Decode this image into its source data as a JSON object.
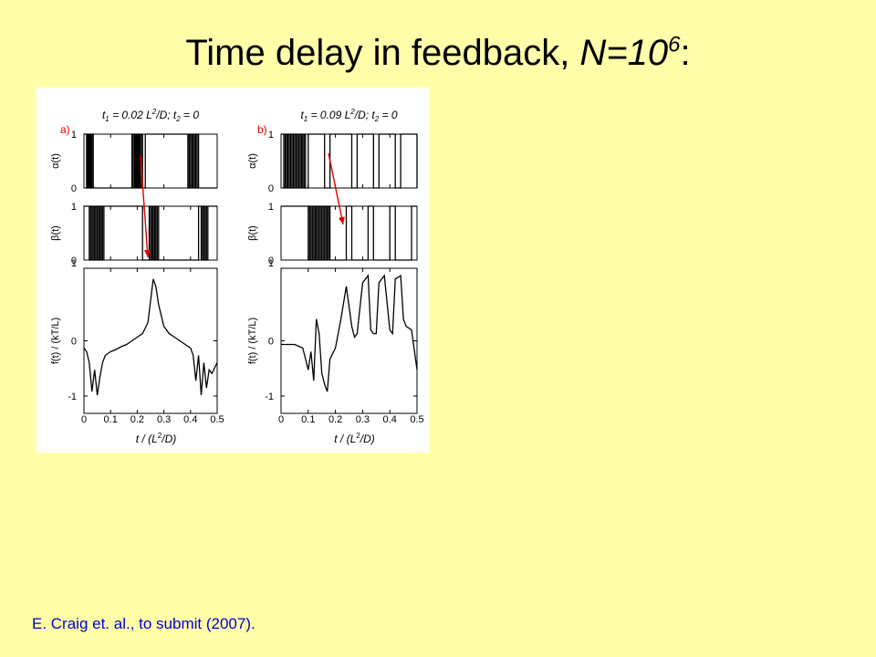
{
  "slide": {
    "title_main": "Time delay in feedback, ",
    "title_n": "N",
    "title_eq": "=10",
    "title_exp": "6",
    "title_tail": ":"
  },
  "figure": {
    "panels": [
      {
        "tag": "a)",
        "cap_t1": "t",
        "cap_s1": "1",
        "cap_mid": " = 0.02 L",
        "cap_s2": "2",
        "cap_mid2": "/D; t",
        "cap_s3": "2",
        "cap_end": " = 0"
      },
      {
        "tag": "b)",
        "cap_t1": "t",
        "cap_s1": "1",
        "cap_mid": " = 0.09 L",
        "cap_s2": "2",
        "cap_mid2": "/D; t",
        "cap_s3": "2",
        "cap_end": " = 0"
      }
    ],
    "ylabel_alpha": "α(t)",
    "ylabel_beta": "β(t)",
    "ylabel_f": "f(t) / (kT/L)",
    "xlabel_pre": "t / (L",
    "xlabel_sup": "2",
    "xlabel_post": "/D)",
    "tick_1": "1",
    "tick_0": "0",
    "tick_m1": "-1"
  },
  "citation": "E. Craig et. al., to submit (2007).",
  "colors": {
    "background": "#FFFFAA",
    "arrow": "#E00000",
    "tag": "#E00000",
    "citation": "#0000CC"
  },
  "chart_data": [
    {
      "type": "line",
      "panel": "a",
      "xlim": [
        0,
        0.5
      ],
      "xticks": [
        0,
        0.1,
        0.2,
        0.3,
        0.4,
        0.5
      ],
      "alpha": {
        "ylim": [
          0,
          1
        ],
        "x": [
          0,
          0.01,
          0.012,
          0.015,
          0.017,
          0.02,
          0.023,
          0.026,
          0.03,
          0.035,
          0.18,
          0.185,
          0.19,
          0.194,
          0.198,
          0.202,
          0.206,
          0.21,
          0.215,
          0.22,
          0.23,
          0.39,
          0.395,
          0.4,
          0.405,
          0.41,
          0.415,
          0.42,
          0.425,
          0.43,
          0.5
        ],
        "y": [
          1,
          0,
          1,
          0,
          1,
          0,
          1,
          0,
          1,
          0,
          1,
          0,
          1,
          0,
          1,
          0,
          1,
          0,
          1,
          0,
          1,
          0,
          1,
          0,
          1,
          0,
          1,
          0,
          1,
          0,
          0
        ]
      },
      "beta": {
        "ylim": [
          0,
          1
        ],
        "x": [
          0,
          0.02,
          0.025,
          0.03,
          0.035,
          0.04,
          0.045,
          0.05,
          0.055,
          0.06,
          0.065,
          0.07,
          0.075,
          0.22,
          0.245,
          0.25,
          0.255,
          0.26,
          0.265,
          0.27,
          0.275,
          0.28,
          0.43,
          0.44,
          0.445,
          0.45,
          0.455,
          0.46,
          0.465,
          0.5
        ],
        "y": [
          1,
          0,
          1,
          0,
          1,
          0,
          1,
          0,
          1,
          0,
          1,
          0,
          1,
          0,
          1,
          0,
          1,
          0,
          1,
          0,
          1,
          0,
          1,
          0,
          1,
          0,
          1,
          0,
          1,
          1
        ]
      },
      "f": {
        "ylim": [
          -1,
          1
        ],
        "x": [
          0,
          0.01,
          0.02,
          0.03,
          0.04,
          0.05,
          0.06,
          0.07,
          0.08,
          0.1,
          0.12,
          0.14,
          0.16,
          0.18,
          0.2,
          0.22,
          0.24,
          0.26,
          0.27,
          0.28,
          0.29,
          0.3,
          0.32,
          0.34,
          0.36,
          0.38,
          0.4,
          0.41,
          0.42,
          0.43,
          0.44,
          0.45,
          0.46,
          0.47,
          0.48,
          0.5
        ],
        "y": [
          -0.1,
          -0.15,
          -0.3,
          -0.7,
          -0.4,
          -0.75,
          -0.5,
          -0.3,
          -0.2,
          -0.15,
          -0.12,
          -0.08,
          -0.05,
          0,
          0.05,
          0.1,
          0.25,
          0.85,
          0.75,
          0.5,
          0.35,
          0.2,
          0.1,
          0.05,
          0,
          -0.05,
          -0.1,
          -0.2,
          -0.55,
          -0.2,
          -0.75,
          -0.3,
          -0.65,
          -0.4,
          -0.45,
          -0.3
        ]
      }
    },
    {
      "type": "line",
      "panel": "b",
      "xlim": [
        0,
        0.5
      ],
      "xticks": [
        0,
        0.1,
        0.2,
        0.3,
        0.4,
        0.5
      ],
      "alpha": {
        "ylim": [
          0,
          1
        ],
        "x": [
          0,
          0.01,
          0.015,
          0.02,
          0.025,
          0.03,
          0.035,
          0.04,
          0.045,
          0.05,
          0.055,
          0.06,
          0.065,
          0.07,
          0.075,
          0.08,
          0.085,
          0.09,
          0.1,
          0.16,
          0.18,
          0.26,
          0.28,
          0.34,
          0.36,
          0.42,
          0.44,
          0.5
        ],
        "y": [
          1,
          0,
          1,
          0,
          1,
          0,
          1,
          0,
          1,
          0,
          1,
          0,
          1,
          0,
          1,
          0,
          1,
          0,
          1,
          0,
          1,
          0,
          1,
          0,
          1,
          0,
          1,
          0
        ]
      },
      "beta": {
        "ylim": [
          0,
          1
        ],
        "x": [
          0,
          0.05,
          0.1,
          0.105,
          0.11,
          0.115,
          0.12,
          0.125,
          0.13,
          0.135,
          0.14,
          0.145,
          0.15,
          0.155,
          0.16,
          0.165,
          0.17,
          0.175,
          0.18,
          0.24,
          0.26,
          0.32,
          0.34,
          0.4,
          0.42,
          0.48,
          0.5
        ],
        "y": [
          1,
          1,
          0,
          1,
          0,
          1,
          0,
          1,
          0,
          1,
          0,
          1,
          0,
          1,
          0,
          1,
          0,
          1,
          0,
          1,
          0,
          1,
          0,
          1,
          0,
          1,
          1
        ]
      },
      "f": {
        "ylim": [
          -1,
          1
        ],
        "x": [
          0,
          0.05,
          0.08,
          0.1,
          0.11,
          0.12,
          0.13,
          0.14,
          0.15,
          0.16,
          0.17,
          0.18,
          0.2,
          0.22,
          0.24,
          0.26,
          0.27,
          0.28,
          0.3,
          0.32,
          0.33,
          0.34,
          0.35,
          0.36,
          0.38,
          0.4,
          0.41,
          0.42,
          0.44,
          0.45,
          0.46,
          0.48,
          0.5
        ],
        "y": [
          -0.05,
          -0.05,
          -0.1,
          -0.4,
          -0.15,
          -0.55,
          0.3,
          0.1,
          -0.45,
          -0.6,
          -0.7,
          -0.25,
          -0.1,
          0.3,
          0.75,
          0.2,
          0.05,
          0.1,
          0.8,
          0.9,
          0.15,
          0.1,
          0.1,
          0.8,
          0.9,
          0.15,
          0.1,
          0.85,
          0.9,
          0.3,
          0.2,
          0.15,
          -0.4
        ]
      }
    }
  ]
}
